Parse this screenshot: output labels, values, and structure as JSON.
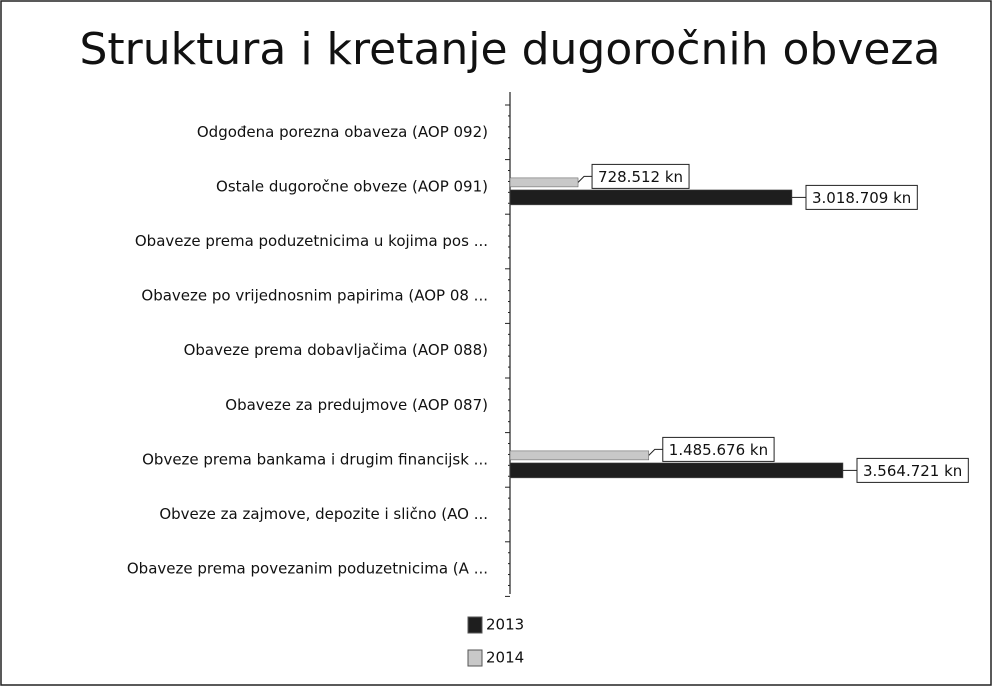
{
  "chart_data": {
    "type": "bar",
    "orientation": "horizontal",
    "title": "Struktura i kretanje dugoročnih obveza",
    "categories": [
      "Odgođena porezna obaveza (AOP 092)",
      "Ostale dugoročne obveze (AOP 091)",
      "Obaveze prema poduzetnicima u kojima pos ...",
      "Obaveze po vrijednosnim papirima (AOP 08 ...",
      "Obaveze prema dobavljačima (AOP 088)",
      "Obaveze za predujmove (AOP 087)",
      "Obveze prema bankama i drugim financijsk ...",
      "Obveze za zajmove, depozite i slično (AO ...",
      "Obaveze prema povezanim poduzetnicima (A ..."
    ],
    "series": [
      {
        "name": "2013",
        "color": "#1e1e1e",
        "values": [
          null,
          3018709,
          null,
          null,
          null,
          null,
          3564721,
          null,
          null
        ],
        "value_labels": [
          null,
          "3.018.709 kn",
          null,
          null,
          null,
          null,
          "3.564.721 kn",
          null,
          null
        ]
      },
      {
        "name": "2014",
        "color": "#c8c8c8",
        "values": [
          null,
          728512,
          null,
          null,
          null,
          null,
          1485676,
          null,
          null
        ],
        "value_labels": [
          null,
          "728.512 kn",
          null,
          null,
          null,
          null,
          "1.485.676 kn",
          null,
          null
        ]
      }
    ]
  }
}
